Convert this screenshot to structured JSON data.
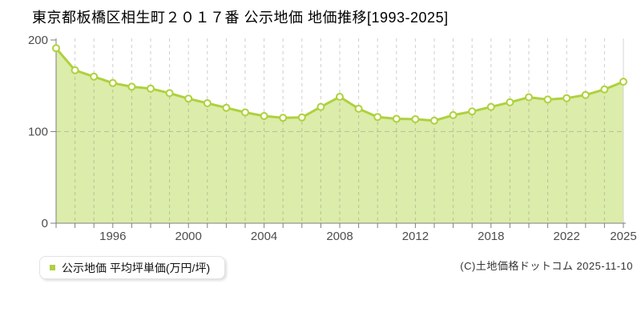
{
  "header": {
    "title": "東京都板橋区相生町２０１７番 公示地価 地価推移[1993-2025]"
  },
  "legend": {
    "label": "公示地価 平均坪単価(万円/坪)",
    "swatch_color": "#aed13e"
  },
  "attribution": "(C)土地価格ドットコム 2025-11-10",
  "chart_data": {
    "type": "area",
    "title": "東京都板橋区相生町２０１７番 公示地価 地価推移[1993-2025]",
    "xlabel": "",
    "ylabel": "平均坪単価(万円/坪)",
    "ylim": [
      0,
      200
    ],
    "y_ticks": [
      0,
      100,
      200
    ],
    "x_tick_labels": [
      "1996",
      "2000",
      "2004",
      "2008",
      "2012",
      "2018",
      "2022",
      "2025"
    ],
    "x_tick_years": [
      1996,
      2000,
      2004,
      2008,
      2012,
      2018,
      2022,
      2025
    ],
    "grid": true,
    "legend_position": "bottom-left",
    "series": [
      {
        "name": "公示地価 平均坪単価(万円/坪)",
        "points": [
          {
            "year": 1993,
            "value": 191
          },
          {
            "year": 1994,
            "value": 167
          },
          {
            "year": 1995,
            "value": 160
          },
          {
            "year": 1996,
            "value": 153
          },
          {
            "year": 1997,
            "value": 149
          },
          {
            "year": 1998,
            "value": 147
          },
          {
            "year": 1999,
            "value": 142
          },
          {
            "year": 2000,
            "value": 136
          },
          {
            "year": 2001,
            "value": 131
          },
          {
            "year": 2002,
            "value": 126
          },
          {
            "year": 2003,
            "value": 121
          },
          {
            "year": 2004,
            "value": 117
          },
          {
            "year": 2005,
            "value": 115
          },
          {
            "year": 2006,
            "value": 115.5
          },
          {
            "year": 2007,
            "value": 127
          },
          {
            "year": 2008,
            "value": 138
          },
          {
            "year": 2009,
            "value": 125
          },
          {
            "year": 2010,
            "value": 116
          },
          {
            "year": 2011,
            "value": 114
          },
          {
            "year": 2012,
            "value": 113.5
          },
          {
            "year": 2013,
            "value": 112
          },
          {
            "year": 2015,
            "value": 118
          },
          {
            "year": 2017,
            "value": 122
          },
          {
            "year": 2018,
            "value": 127
          },
          {
            "year": 2019,
            "value": 132
          },
          {
            "year": 2020,
            "value": 137.5
          },
          {
            "year": 2021,
            "value": 135
          },
          {
            "year": 2022,
            "value": 136.5
          },
          {
            "year": 2023,
            "value": 140
          },
          {
            "year": 2024,
            "value": 146
          },
          {
            "year": 2025,
            "value": 154.5
          }
        ]
      }
    ],
    "colors": {
      "line": "#aed13e",
      "fill": "#dcecaa",
      "marker_fill": "#fffef2",
      "grid": "#cccccc",
      "axis": "#7f7f7f",
      "tick_label": "#4d4d4d",
      "right_border": "#d4d4d4"
    }
  }
}
